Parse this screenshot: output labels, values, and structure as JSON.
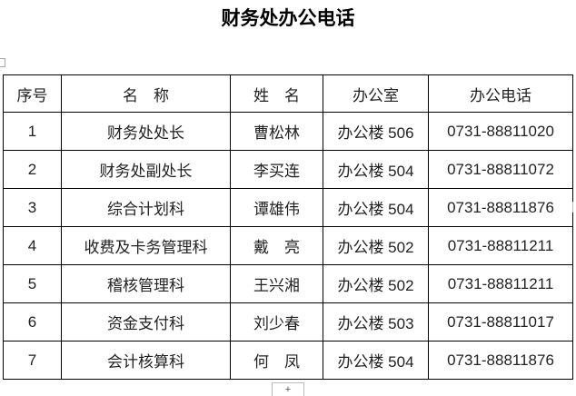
{
  "title": "财务处办公电话",
  "table": {
    "headers": [
      "序号",
      "名　称",
      "姓　名",
      "办公室",
      "办公电话"
    ],
    "rows": [
      [
        "1",
        "财务处处长",
        "曹松林",
        "办公楼 506",
        "0731-88811020"
      ],
      [
        "2",
        "财务处副处长",
        "李买连",
        "办公楼 504",
        "0731-88811072"
      ],
      [
        "3",
        "综合计划科",
        "谭雄伟",
        "办公楼 504",
        "0731-88811876"
      ],
      [
        "4",
        "收费及卡务管理科",
        "戴　亮",
        "办公楼 502",
        "0731-88811211"
      ],
      [
        "5",
        "稽核管理科",
        "王兴湘",
        "办公楼 502",
        "0731-88811211"
      ],
      [
        "6",
        "资金支付科",
        "刘少春",
        "办公楼 503",
        "0731-88811017"
      ],
      [
        "7",
        "会计核算科",
        "何　凤",
        "办公楼 504",
        "0731-88811876"
      ]
    ]
  },
  "add_row_label": "+"
}
